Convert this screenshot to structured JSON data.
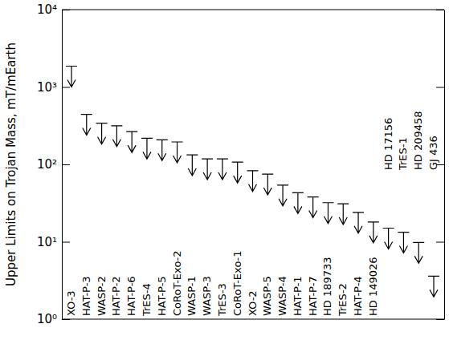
{
  "chart_data": {
    "type": "scatter",
    "marker": "arrow",
    "color": "#000000",
    "log": "y",
    "y_label": "Upper Limits on Trojan Mass, mT/mEarth",
    "categories": [
      "XO-3",
      "HAT-P-3",
      "WASP-2",
      "HAT-P-2",
      "HAT-P-6",
      "TrES-4",
      "HAT-P-5",
      "CoRoT-Exo-2",
      "WASP-1",
      "WASP-3",
      "TrES-3",
      "CoRoT-Exo-1",
      "XO-2",
      "WASP-5",
      "WASP-4",
      "HAT-P-1",
      "HAT-P-7",
      "HD 189733",
      "TrES-2",
      "HAT-P-4",
      "HD 149026",
      "HD 17156",
      "TrES-1",
      "HD 209458",
      "GJ 436"
    ],
    "values": [
      1860,
      444,
      340,
      316,
      265,
      218,
      208,
      195,
      133,
      118,
      118,
      107,
      83,
      75,
      54,
      43,
      38,
      32,
      31,
      24,
      18,
      15,
      13.3,
      9.8,
      3.6
    ],
    "ylim": [
      1,
      10000
    ],
    "yticks": [
      {
        "value": 1,
        "label": "10⁰"
      },
      {
        "value": 10,
        "label": "10¹"
      },
      {
        "value": 100,
        "label": "10²"
      },
      {
        "value": 1000,
        "label": "10³"
      },
      {
        "value": 10000,
        "label": "10⁴"
      }
    ]
  }
}
